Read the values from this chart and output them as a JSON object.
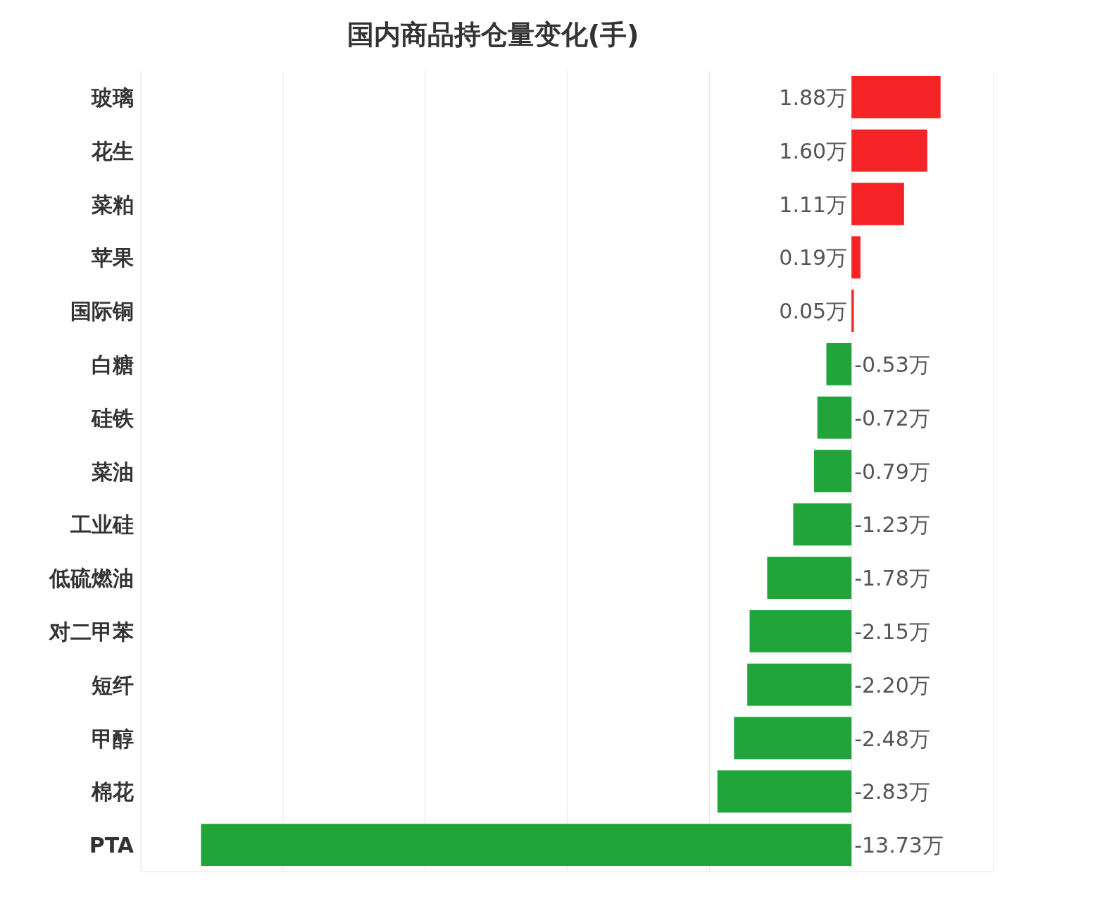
{
  "chart_data": {
    "type": "bar",
    "orientation": "horizontal",
    "title": "国内商品持仓量变化(手)",
    "categories": [
      "玻璃",
      "花生",
      "菜粕",
      "苹果",
      "国际铜",
      "白糖",
      "硅铁",
      "菜油",
      "工业硅",
      "低硫燃油",
      "对二甲苯",
      "短纤",
      "甲醇",
      "棉花",
      "PTA"
    ],
    "values": [
      1.88,
      1.6,
      1.11,
      0.19,
      0.05,
      -0.53,
      -0.72,
      -0.79,
      -1.23,
      -1.78,
      -2.15,
      -2.2,
      -2.48,
      -2.83,
      -13.73
    ],
    "colors": [
      "#f52325",
      "#f52325",
      "#f52325",
      "#f52325",
      "#f52325",
      "#21a53b",
      "#21a53b",
      "#21a53b",
      "#21a53b",
      "#21a53b",
      "#21a53b",
      "#21a53b",
      "#21a53b",
      "#21a53b",
      "#21a53b"
    ],
    "value_labels": [
      "1.88万",
      "1.60万",
      "1.11万",
      "0.19万",
      "0.05万",
      "-0.53万",
      "-0.72万",
      "-0.79万",
      "-1.23万",
      "-1.78万",
      "-2.15万",
      "-2.20万",
      "-2.48万",
      "-2.83万",
      "-13.73万"
    ],
    "xlim": [
      -15,
      3
    ],
    "xticks": [
      {
        "value": -15,
        "label": null
      },
      {
        "value": -12,
        "label": null
      },
      {
        "value": -9,
        "label": null
      },
      {
        "value": -6,
        "label": null
      },
      {
        "value": -3,
        "label": null
      },
      {
        "value": 0,
        "label": null
      },
      {
        "value": 3,
        "label": null
      }
    ],
    "grid": "x",
    "tick_labels": "y"
  }
}
